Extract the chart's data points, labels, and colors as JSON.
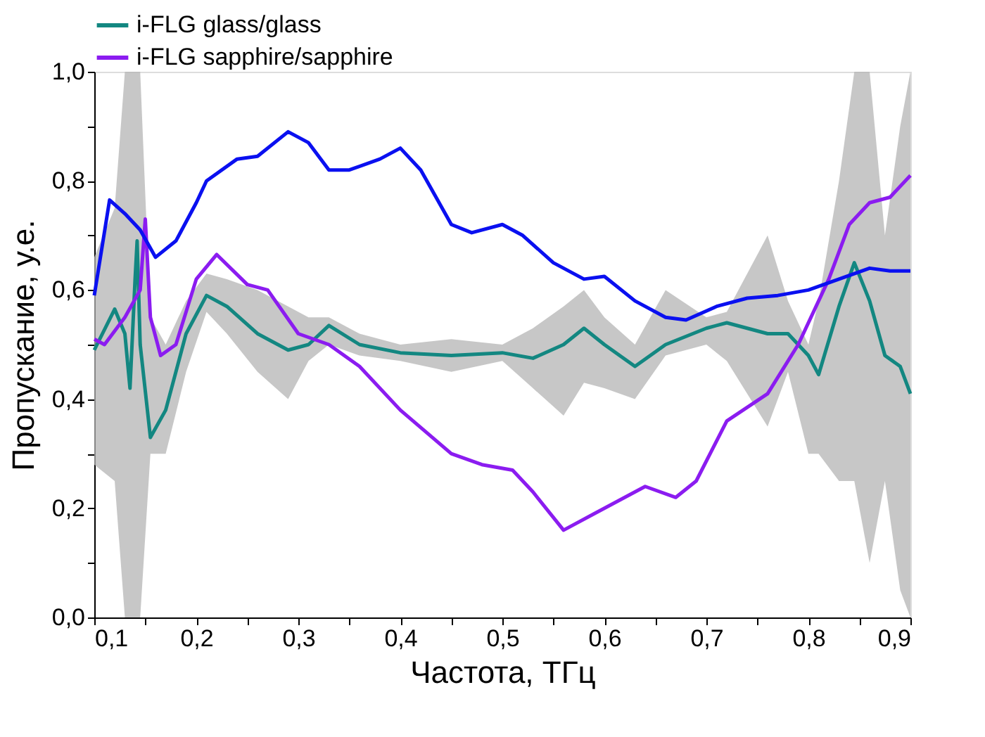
{
  "chart_data": {
    "type": "line",
    "xlabel": "Частота, ТГц",
    "ylabel": "Пропускание, у.е.",
    "legend": "top",
    "grid": false,
    "line_style": "solid",
    "marker": "none",
    "xlim": [
      0.1,
      0.9
    ],
    "ylim": [
      0.0,
      1.0
    ],
    "xticks": [
      {
        "value": 0.1,
        "label": "0,1"
      },
      {
        "value": 0.15,
        "label": null
      },
      {
        "value": 0.2,
        "label": "0,2"
      },
      {
        "value": 0.25,
        "label": null
      },
      {
        "value": 0.3,
        "label": "0,3"
      },
      {
        "value": 0.35,
        "label": null
      },
      {
        "value": 0.4,
        "label": "0,4"
      },
      {
        "value": 0.45,
        "label": null
      },
      {
        "value": 0.5,
        "label": "0,5"
      },
      {
        "value": 0.55,
        "label": null
      },
      {
        "value": 0.6,
        "label": "0,6"
      },
      {
        "value": 0.65,
        "label": null
      },
      {
        "value": 0.7,
        "label": "0,7"
      },
      {
        "value": 0.75,
        "label": null
      },
      {
        "value": 0.8,
        "label": "0,8"
      },
      {
        "value": 0.85,
        "label": null
      },
      {
        "value": 0.9,
        "label": "0,9"
      }
    ],
    "yticks": [
      {
        "value": 0.0,
        "label": "0,0"
      },
      {
        "value": 0.1,
        "label": null
      },
      {
        "value": 0.2,
        "label": "0,2"
      },
      {
        "value": 0.3,
        "label": null
      },
      {
        "value": 0.4,
        "label": "0,4"
      },
      {
        "value": 0.5,
        "label": null
      },
      {
        "value": 0.6,
        "label": "0,6"
      },
      {
        "value": 0.7,
        "label": null
      },
      {
        "value": 0.8,
        "label": "0,8"
      },
      {
        "value": 0.9,
        "label": null
      },
      {
        "value": 1.0,
        "label": "1,0"
      }
    ],
    "series": [
      {
        "name": "i-FLG glass/glass",
        "color": "#138781",
        "x": [
          0.1,
          0.12,
          0.13,
          0.135,
          0.14,
          0.142,
          0.145,
          0.155,
          0.17,
          0.19,
          0.21,
          0.23,
          0.26,
          0.29,
          0.31,
          0.33,
          0.36,
          0.4,
          0.45,
          0.5,
          0.53,
          0.56,
          0.58,
          0.6,
          0.63,
          0.66,
          0.7,
          0.72,
          0.76,
          0.78,
          0.8,
          0.81,
          0.83,
          0.845,
          0.86,
          0.875,
          0.89,
          0.9
        ],
        "values": [
          0.49,
          0.565,
          0.52,
          0.42,
          0.62,
          0.69,
          0.5,
          0.33,
          0.38,
          0.52,
          0.59,
          0.57,
          0.52,
          0.49,
          0.5,
          0.535,
          0.5,
          0.485,
          0.48,
          0.485,
          0.475,
          0.5,
          0.53,
          0.5,
          0.46,
          0.5,
          0.53,
          0.54,
          0.52,
          0.52,
          0.48,
          0.445,
          0.57,
          0.65,
          0.58,
          0.48,
          0.46,
          0.41
        ],
        "lower": [
          0.28,
          0.25,
          0.0,
          0.0,
          0.0,
          0.0,
          0.0,
          0.3,
          0.3,
          0.45,
          0.56,
          0.52,
          0.45,
          0.4,
          0.47,
          0.5,
          0.48,
          0.47,
          0.45,
          0.47,
          0.42,
          0.37,
          0.43,
          0.42,
          0.4,
          0.48,
          0.5,
          0.47,
          0.35,
          0.45,
          0.3,
          0.3,
          0.25,
          0.25,
          0.1,
          0.25,
          0.05,
          0.0
        ],
        "upper": [
          0.66,
          0.75,
          1.0,
          1.0,
          1.0,
          1.0,
          1.0,
          0.55,
          0.5,
          0.58,
          0.63,
          0.62,
          0.6,
          0.57,
          0.55,
          0.55,
          0.52,
          0.5,
          0.51,
          0.5,
          0.53,
          0.57,
          0.6,
          0.55,
          0.5,
          0.6,
          0.55,
          0.56,
          0.7,
          0.58,
          0.5,
          0.58,
          0.8,
          1.0,
          1.0,
          0.7,
          0.9,
          1.0
        ]
      },
      {
        "name": "i-FLG sapphire/sapphire",
        "color": "#8b1cf0",
        "x": [
          0.1,
          0.11,
          0.13,
          0.145,
          0.15,
          0.155,
          0.165,
          0.18,
          0.2,
          0.22,
          0.25,
          0.27,
          0.3,
          0.33,
          0.36,
          0.4,
          0.45,
          0.48,
          0.51,
          0.53,
          0.56,
          0.59,
          0.62,
          0.64,
          0.67,
          0.69,
          0.72,
          0.76,
          0.79,
          0.82,
          0.84,
          0.86,
          0.88,
          0.9
        ],
        "values": [
          0.51,
          0.5,
          0.55,
          0.6,
          0.73,
          0.55,
          0.48,
          0.5,
          0.62,
          0.665,
          0.61,
          0.6,
          0.52,
          0.5,
          0.46,
          0.38,
          0.3,
          0.28,
          0.27,
          0.23,
          0.16,
          0.19,
          0.22,
          0.24,
          0.22,
          0.25,
          0.36,
          0.41,
          0.5,
          0.62,
          0.72,
          0.76,
          0.77,
          0.81
        ]
      },
      {
        "color": "#0a10f0",
        "x": [
          0.1,
          0.115,
          0.13,
          0.145,
          0.16,
          0.18,
          0.2,
          0.21,
          0.24,
          0.26,
          0.29,
          0.31,
          0.33,
          0.35,
          0.38,
          0.4,
          0.42,
          0.45,
          0.47,
          0.5,
          0.52,
          0.55,
          0.58,
          0.6,
          0.63,
          0.66,
          0.68,
          0.71,
          0.74,
          0.77,
          0.8,
          0.83,
          0.86,
          0.88,
          0.9
        ],
        "values": [
          0.59,
          0.765,
          0.74,
          0.71,
          0.66,
          0.69,
          0.76,
          0.8,
          0.84,
          0.845,
          0.89,
          0.87,
          0.82,
          0.82,
          0.84,
          0.86,
          0.82,
          0.72,
          0.705,
          0.72,
          0.7,
          0.65,
          0.62,
          0.625,
          0.58,
          0.55,
          0.545,
          0.57,
          0.585,
          0.59,
          0.6,
          0.62,
          0.64,
          0.635,
          0.635
        ]
      }
    ]
  }
}
